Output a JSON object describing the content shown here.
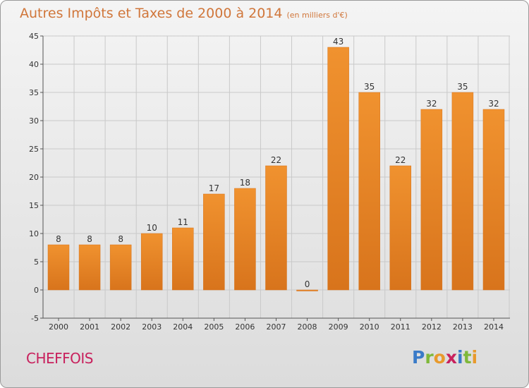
{
  "header": {
    "title": "Autres Impôts et Taxes de 2000 à 2014",
    "unit": "(en milliers d'€)"
  },
  "footer": {
    "commune": "CHEFFOIS",
    "logo_letters": [
      "P",
      "r",
      "o",
      "x",
      "i",
      "t",
      "i"
    ],
    "logo_colors": [
      "#3a7bc8",
      "#7fb83a",
      "#e89a2c",
      "#c8215d",
      "#3a7bc8",
      "#7fb83a",
      "#e89a2c"
    ]
  },
  "colors": {
    "bar": "#f0922f",
    "bar_dark": "#d8741c",
    "axis": "#555555",
    "grid": "#c9c9c9",
    "title": "#d0763a",
    "commune": "#c8215d"
  },
  "chart_data": {
    "type": "bar",
    "title": "Autres Impôts et Taxes de 2000 à 2014",
    "subtitle": "(en milliers d'€)",
    "xlabel": "",
    "ylabel": "",
    "categories": [
      "2000",
      "2001",
      "2002",
      "2003",
      "2004",
      "2005",
      "2006",
      "2007",
      "2008",
      "2009",
      "2010",
      "2011",
      "2012",
      "2013",
      "2014"
    ],
    "values": [
      8,
      8,
      8,
      10,
      11,
      17,
      18,
      22,
      0,
      43,
      35,
      22,
      32,
      35,
      32
    ],
    "ylim": [
      -5,
      45
    ],
    "yticks": [
      -5,
      0,
      5,
      10,
      15,
      20,
      25,
      30,
      35,
      40,
      45
    ],
    "grid": true,
    "legend": "none"
  }
}
